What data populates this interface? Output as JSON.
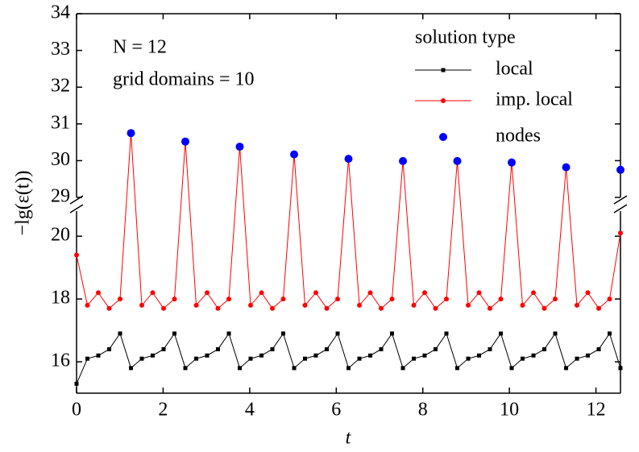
{
  "chart_data": {
    "type": "line",
    "ylabel": "−lg(ε(t))",
    "xlabel": "t",
    "annotations": [
      "N = 12",
      "grid domains = 10"
    ],
    "legend_title": "solution type",
    "xlim": [
      0,
      12.566
    ],
    "xticks": [
      0,
      2,
      4,
      6,
      8,
      10,
      12
    ],
    "y_segments": [
      {
        "ylim": [
          15,
          20.8
        ],
        "yticks": [
          16,
          18,
          20
        ]
      },
      {
        "ylim": [
          29,
          34
        ],
        "yticks": [
          29,
          30,
          31,
          32,
          33,
          34
        ]
      }
    ],
    "x": [
      0,
      0.251,
      0.503,
      0.754,
      1.005,
      1.257,
      1.508,
      1.759,
      2.011,
      2.262,
      2.513,
      2.765,
      3.016,
      3.267,
      3.519,
      3.77,
      4.021,
      4.273,
      4.524,
      4.775,
      5.027,
      5.278,
      5.529,
      5.781,
      6.032,
      6.283,
      6.535,
      6.786,
      7.037,
      7.288,
      7.54,
      7.791,
      8.042,
      8.294,
      8.545,
      8.796,
      9.048,
      9.299,
      9.55,
      9.802,
      10.053,
      10.304,
      10.556,
      10.807,
      11.058,
      11.31,
      11.561,
      11.812,
      12.064,
      12.315,
      12.566
    ],
    "series": [
      {
        "name": "local",
        "color": "#000000",
        "marker": "square",
        "line": true,
        "values": [
          15.3,
          16.1,
          16.2,
          16.4,
          16.9,
          15.8,
          16.1,
          16.2,
          16.4,
          16.9,
          15.8,
          16.1,
          16.2,
          16.4,
          16.9,
          15.8,
          16.1,
          16.2,
          16.4,
          16.9,
          15.8,
          16.1,
          16.2,
          16.4,
          16.9,
          15.8,
          16.1,
          16.2,
          16.4,
          16.9,
          15.8,
          16.1,
          16.2,
          16.4,
          16.9,
          15.8,
          16.1,
          16.2,
          16.4,
          16.9,
          15.8,
          16.1,
          16.2,
          16.4,
          16.9,
          15.8,
          16.1,
          16.2,
          16.4,
          16.9,
          15.8
        ]
      },
      {
        "name": "imp. local",
        "color": "#ff0000",
        "marker": "circle",
        "line": true,
        "values": [
          19.4,
          17.8,
          18.2,
          17.7,
          18.0,
          30.75,
          17.8,
          18.2,
          17.7,
          18.0,
          30.52,
          17.8,
          18.2,
          17.7,
          18.0,
          30.38,
          17.8,
          18.2,
          17.7,
          18.0,
          30.17,
          17.8,
          18.2,
          17.7,
          18.0,
          30.05,
          17.8,
          18.2,
          17.7,
          18.0,
          29.99,
          17.8,
          18.2,
          17.7,
          18.0,
          29.99,
          17.8,
          18.2,
          17.7,
          18.0,
          29.95,
          17.8,
          18.2,
          17.7,
          18.0,
          29.82,
          17.8,
          18.2,
          17.7,
          18.0,
          20.1
        ]
      },
      {
        "name": "nodes",
        "color": "#0000ff",
        "marker": "dot",
        "line": false,
        "values": [
          null,
          null,
          null,
          null,
          null,
          30.75,
          null,
          null,
          null,
          null,
          30.52,
          null,
          null,
          null,
          null,
          30.38,
          null,
          null,
          null,
          null,
          30.17,
          null,
          null,
          null,
          null,
          30.05,
          null,
          null,
          null,
          null,
          29.99,
          null,
          null,
          null,
          null,
          29.99,
          null,
          null,
          null,
          null,
          29.95,
          null,
          null,
          null,
          null,
          29.82,
          null,
          null,
          null,
          null,
          29.75
        ]
      }
    ]
  }
}
